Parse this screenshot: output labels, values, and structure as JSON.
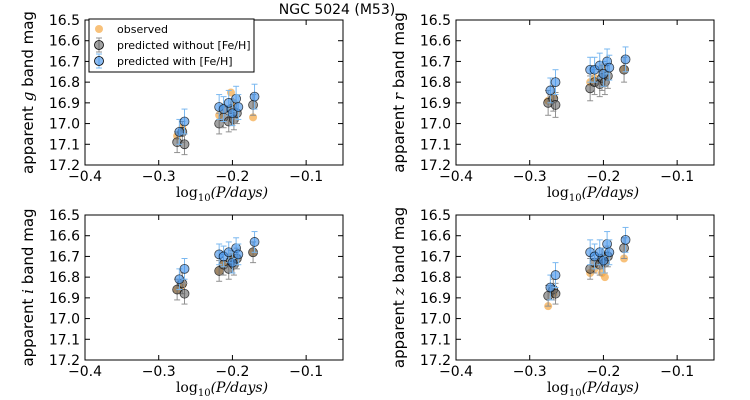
{
  "figure_title": "NGC 5024 (M53)",
  "colors": {
    "observed": "#f5a742",
    "without": "#555555",
    "with": "#3d8ee8",
    "err_without": "#909090",
    "err_with": "#7ab8f0"
  },
  "legend": {
    "location": "upper-left of first panel",
    "entries": [
      {
        "key": "observed",
        "label": "observed"
      },
      {
        "key": "without",
        "label": "predicted without [Fe/H]"
      },
      {
        "key": "with",
        "label": "predicted with [Fe/H]"
      }
    ]
  },
  "chart_data": [
    {
      "type": "scatter",
      "panel": "g",
      "ylabel_pre": "apparent ",
      "ylabel_band": "g",
      "ylabel_post": " band mag",
      "xlabel_pre": "log",
      "xlabel_sub": "10",
      "xlabel_post": "(P/days)",
      "xlim": [
        -0.4,
        -0.05
      ],
      "ylim": [
        17.2,
        16.5
      ],
      "xticks": [
        "−0.4",
        "−0.3",
        "−0.2",
        "−0.1"
      ],
      "xtick_values": [
        -0.4,
        -0.3,
        -0.2,
        -0.1
      ],
      "yticks": [
        "16.5",
        "16.6",
        "16.7",
        "16.8",
        "16.9",
        "17.0",
        "17.1",
        "17.2"
      ],
      "ytick_values": [
        16.5,
        16.6,
        16.7,
        16.8,
        16.9,
        17.0,
        17.1,
        17.2
      ],
      "series": [
        {
          "name": "observed",
          "x": [
            -0.275,
            -0.268,
            -0.218,
            -0.212,
            -0.202,
            -0.198,
            -0.172
          ],
          "y": [
            17.06,
            17.02,
            16.96,
            16.93,
            16.85,
            16.9,
            16.97
          ]
        },
        {
          "name": "predicted without [Fe/H]",
          "x": [
            -0.275,
            -0.268,
            -0.265,
            -0.218,
            -0.212,
            -0.205,
            -0.202,
            -0.198,
            -0.194,
            -0.172
          ],
          "y": [
            17.09,
            17.04,
            17.1,
            17.0,
            16.97,
            16.99,
            16.93,
            16.98,
            16.95,
            16.91
          ],
          "err": [
            0.05,
            0.05,
            0.05,
            0.05,
            0.05,
            0.05,
            0.05,
            0.05,
            0.05,
            0.05
          ]
        },
        {
          "name": "predicted with [Fe/H]",
          "x": [
            -0.272,
            -0.265,
            -0.218,
            -0.212,
            -0.205,
            -0.2,
            -0.195,
            -0.192,
            -0.17
          ],
          "y": [
            17.04,
            16.99,
            16.92,
            16.93,
            16.9,
            16.95,
            16.88,
            16.92,
            16.87
          ],
          "err": [
            0.06,
            0.06,
            0.06,
            0.06,
            0.06,
            0.06,
            0.06,
            0.06,
            0.06
          ]
        }
      ]
    },
    {
      "type": "scatter",
      "panel": "r",
      "ylabel_pre": "apparent ",
      "ylabel_band": "r",
      "ylabel_post": " band mag",
      "xlabel_pre": "log",
      "xlabel_sub": "10",
      "xlabel_post": "(P/days)",
      "xlim": [
        -0.4,
        -0.05
      ],
      "ylim": [
        17.2,
        16.5
      ],
      "xticks": [
        "−0.4",
        "−0.3",
        "−0.2",
        "−0.1"
      ],
      "xtick_values": [
        -0.4,
        -0.3,
        -0.2,
        -0.1
      ],
      "yticks": [
        "16.5",
        "16.6",
        "16.7",
        "16.8",
        "16.9",
        "17.0",
        "17.1",
        "17.2"
      ],
      "ytick_values": [
        16.5,
        16.6,
        16.7,
        16.8,
        16.9,
        17.0,
        17.1,
        17.2
      ],
      "series": [
        {
          "name": "observed",
          "x": [
            -0.275,
            -0.268,
            -0.218,
            -0.212,
            -0.202,
            -0.198,
            -0.172
          ],
          "y": [
            16.89,
            16.87,
            16.8,
            16.78,
            16.73,
            16.76,
            16.74
          ]
        },
        {
          "name": "predicted without [Fe/H]",
          "x": [
            -0.275,
            -0.268,
            -0.265,
            -0.218,
            -0.212,
            -0.205,
            -0.202,
            -0.198,
            -0.194,
            -0.172
          ],
          "y": [
            16.9,
            16.88,
            16.91,
            16.83,
            16.8,
            16.81,
            16.78,
            16.8,
            16.77,
            16.74
          ],
          "err": [
            0.06,
            0.06,
            0.06,
            0.06,
            0.06,
            0.06,
            0.06,
            0.06,
            0.06,
            0.06
          ]
        },
        {
          "name": "predicted with [Fe/H]",
          "x": [
            -0.272,
            -0.265,
            -0.218,
            -0.212,
            -0.205,
            -0.2,
            -0.195,
            -0.192,
            -0.17
          ],
          "y": [
            16.84,
            16.8,
            16.74,
            16.74,
            16.72,
            16.76,
            16.7,
            16.73,
            16.69
          ],
          "err": [
            0.06,
            0.06,
            0.06,
            0.06,
            0.06,
            0.06,
            0.06,
            0.06,
            0.06
          ]
        }
      ]
    },
    {
      "type": "scatter",
      "panel": "i",
      "ylabel_pre": "apparent ",
      "ylabel_band": "i",
      "ylabel_post": " band mag",
      "xlabel_pre": "log",
      "xlabel_sub": "10",
      "xlabel_post": "(P/days)",
      "xlim": [
        -0.4,
        -0.05
      ],
      "ylim": [
        17.2,
        16.5
      ],
      "xticks": [
        "−0.4",
        "−0.3",
        "−0.2",
        "−0.1"
      ],
      "xtick_values": [
        -0.4,
        -0.3,
        -0.2,
        -0.1
      ],
      "yticks": [
        "16.5",
        "16.6",
        "16.7",
        "16.8",
        "16.9",
        "17.0",
        "17.1",
        "17.2"
      ],
      "ytick_values": [
        16.5,
        16.6,
        16.7,
        16.8,
        16.9,
        17.0,
        17.1,
        17.2
      ],
      "series": [
        {
          "name": "observed",
          "x": [
            -0.275,
            -0.268,
            -0.218,
            -0.212,
            -0.202,
            -0.198,
            -0.172
          ],
          "y": [
            16.86,
            16.84,
            16.77,
            16.74,
            16.7,
            16.72,
            16.68
          ]
        },
        {
          "name": "predicted without [Fe/H]",
          "x": [
            -0.275,
            -0.268,
            -0.265,
            -0.218,
            -0.212,
            -0.205,
            -0.202,
            -0.198,
            -0.194,
            -0.172
          ],
          "y": [
            16.86,
            16.83,
            16.88,
            16.77,
            16.74,
            16.76,
            16.72,
            16.74,
            16.71,
            16.68
          ],
          "err": [
            0.05,
            0.05,
            0.05,
            0.05,
            0.05,
            0.05,
            0.05,
            0.05,
            0.05,
            0.05
          ]
        },
        {
          "name": "predicted with [Fe/H]",
          "x": [
            -0.272,
            -0.265,
            -0.218,
            -0.212,
            -0.205,
            -0.2,
            -0.195,
            -0.192,
            -0.17
          ],
          "y": [
            16.81,
            16.76,
            16.69,
            16.7,
            16.68,
            16.73,
            16.66,
            16.69,
            16.63
          ],
          "err": [
            0.05,
            0.05,
            0.05,
            0.05,
            0.05,
            0.05,
            0.05,
            0.05,
            0.05
          ]
        }
      ]
    },
    {
      "type": "scatter",
      "panel": "z",
      "ylabel_pre": "apparent ",
      "ylabel_band": "z",
      "ylabel_post": " band mag",
      "xlabel_pre": "log",
      "xlabel_sub": "10",
      "xlabel_post": "(P/days)",
      "xlim": [
        -0.4,
        -0.05
      ],
      "ylim": [
        17.2,
        16.5
      ],
      "xticks": [
        "−0.4",
        "−0.3",
        "−0.2",
        "−0.1"
      ],
      "xtick_values": [
        -0.4,
        -0.3,
        -0.2,
        -0.1
      ],
      "yticks": [
        "16.5",
        "16.6",
        "16.7",
        "16.8",
        "16.9",
        "17.0",
        "17.1",
        "17.2"
      ],
      "ytick_values": [
        16.5,
        16.6,
        16.7,
        16.8,
        16.9,
        17.0,
        17.1,
        17.2
      ],
      "series": [
        {
          "name": "observed",
          "x": [
            -0.275,
            -0.268,
            -0.218,
            -0.212,
            -0.202,
            -0.198,
            -0.172
          ],
          "y": [
            16.94,
            16.88,
            16.78,
            16.76,
            16.78,
            16.8,
            16.71
          ]
        },
        {
          "name": "predicted without [Fe/H]",
          "x": [
            -0.275,
            -0.268,
            -0.265,
            -0.218,
            -0.212,
            -0.205,
            -0.202,
            -0.198,
            -0.194,
            -0.172
          ],
          "y": [
            16.89,
            16.86,
            16.88,
            16.76,
            16.73,
            16.74,
            16.71,
            16.73,
            16.7,
            16.66
          ],
          "err": [
            0.05,
            0.05,
            0.05,
            0.05,
            0.05,
            0.05,
            0.05,
            0.05,
            0.05,
            0.05
          ]
        },
        {
          "name": "predicted with [Fe/H]",
          "x": [
            -0.272,
            -0.265,
            -0.218,
            -0.212,
            -0.205,
            -0.2,
            -0.195,
            -0.192,
            -0.17
          ],
          "y": [
            16.85,
            16.79,
            16.68,
            16.7,
            16.68,
            16.72,
            16.64,
            16.68,
            16.62
          ],
          "err": [
            0.06,
            0.06,
            0.06,
            0.06,
            0.06,
            0.06,
            0.06,
            0.06,
            0.06
          ]
        }
      ]
    }
  ]
}
